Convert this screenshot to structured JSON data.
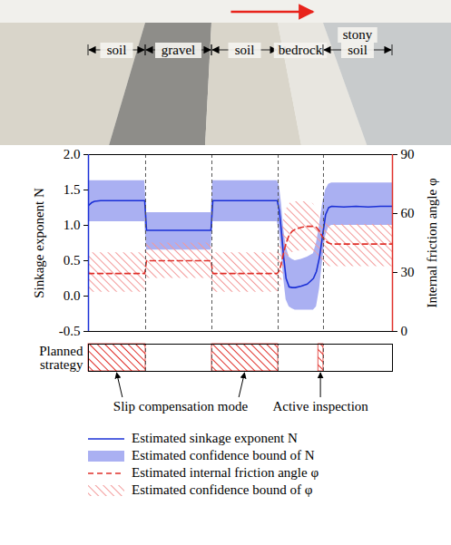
{
  "chart_data": {
    "type": "line",
    "terrain_segments": [
      {
        "label": "soil",
        "start": 0,
        "end": 18.8,
        "color": "#d9d5ca"
      },
      {
        "label": "gravel",
        "start": 18.8,
        "end": 40.6,
        "color": "#8e8d89"
      },
      {
        "label": "soil",
        "start": 40.6,
        "end": 62.4,
        "color": "#d9d5ca"
      },
      {
        "label": "bedrock",
        "start": 62.4,
        "end": 77.3,
        "color": "#e8e6e0"
      },
      {
        "label": "stony soil",
        "start": 77.3,
        "end": 100,
        "color": "#c8cbcc"
      }
    ],
    "xlim": [
      0,
      100
    ],
    "tick_labels": "y",
    "ylabel": "Sinkage exponent N",
    "y2label": "Internal friction angle φ",
    "ylim": [
      -0.5,
      2.0
    ],
    "yticks": [
      -0.5,
      {
        "value": 0,
        "label": "0.0"
      },
      0.5,
      {
        "value": 1,
        "label": "1.0"
      },
      1.5,
      {
        "value": 2,
        "label": "2.0"
      }
    ],
    "y2lim": [
      0,
      90
    ],
    "y2ticks": [
      0,
      30,
      60,
      90
    ],
    "x": [
      0,
      1,
      2,
      4,
      8,
      12,
      16,
      18.5,
      19.1,
      22,
      26,
      30,
      34,
      38,
      40.3,
      40.9,
      44,
      48,
      52,
      56,
      60,
      62.1,
      62.8,
      63.5,
      64.2,
      65,
      66,
      67,
      68,
      70,
      72,
      74,
      75,
      76,
      77,
      78,
      79,
      80,
      84,
      88,
      92,
      96,
      100
    ],
    "series": [
      {
        "name": "Estimated sinkage exponent N",
        "type": "line",
        "line_style": "solid",
        "color": "#1a2fd6",
        "values": [
          1.28,
          1.32,
          1.34,
          1.35,
          1.35,
          1.35,
          1.35,
          1.35,
          0.93,
          0.93,
          0.93,
          0.93,
          0.93,
          0.93,
          0.93,
          1.35,
          1.35,
          1.35,
          1.35,
          1.35,
          1.35,
          1.35,
          1.2,
          0.9,
          0.55,
          0.25,
          0.13,
          0.12,
          0.12,
          0.14,
          0.17,
          0.25,
          0.35,
          0.55,
          0.85,
          1.15,
          1.25,
          1.27,
          1.26,
          1.27,
          1.26,
          1.27,
          1.27
        ]
      },
      {
        "name": "Estimated confidence bound of N",
        "type": "area",
        "color": "#aab0f2",
        "lower": [
          1.05,
          1.05,
          1.05,
          1.05,
          1.05,
          1.05,
          1.05,
          1.05,
          0.65,
          0.65,
          0.65,
          0.65,
          0.65,
          0.65,
          0.65,
          1.05,
          1.05,
          1.05,
          1.05,
          1.05,
          1.05,
          1.05,
          0.9,
          0.6,
          0.25,
          -0.05,
          -0.15,
          -0.18,
          -0.2,
          -0.2,
          -0.2,
          -0.2,
          -0.15,
          0.1,
          0.5,
          0.85,
          0.97,
          1.0,
          1.0,
          1.0,
          1.0,
          1.0,
          1.0
        ],
        "upper": [
          1.63,
          1.63,
          1.63,
          1.63,
          1.63,
          1.63,
          1.63,
          1.63,
          1.18,
          1.18,
          1.18,
          1.18,
          1.18,
          1.18,
          1.18,
          1.63,
          1.63,
          1.63,
          1.63,
          1.63,
          1.63,
          1.63,
          1.55,
          1.3,
          0.95,
          0.7,
          0.55,
          0.52,
          0.5,
          0.52,
          0.55,
          0.6,
          0.75,
          1.0,
          1.3,
          1.5,
          1.58,
          1.6,
          1.6,
          1.6,
          1.6,
          1.6,
          1.6
        ]
      },
      {
        "name": "Estimated internal friction angle φ",
        "type": "line",
        "axis": "y2",
        "line_style": "dashed",
        "color": "#e0302a",
        "values": [
          29.5,
          29.5,
          29.5,
          29.5,
          29.5,
          29.5,
          29.5,
          29.5,
          36,
          36,
          36,
          36,
          36,
          36,
          36,
          29.5,
          29.5,
          29.5,
          29.5,
          29.5,
          29.5,
          29.5,
          31,
          35,
          40,
          45,
          49,
          51,
          52,
          53,
          53.5,
          53.5,
          53,
          51,
          48,
          46,
          45,
          44.5,
          44.5,
          44.5,
          44.5,
          44.5,
          44.5
        ]
      },
      {
        "name": "Estimated confidence bound of φ",
        "type": "area",
        "axis": "y2",
        "color": "#f39a9a",
        "lower": [
          20,
          20,
          20,
          20,
          20,
          20,
          20,
          20,
          27,
          27,
          27,
          27,
          27,
          27,
          27,
          20,
          20,
          20,
          20,
          20,
          20,
          20,
          21,
          25,
          30,
          35,
          39,
          40,
          41,
          41,
          41,
          41,
          40,
          37,
          35,
          34,
          33,
          33,
          33,
          33,
          33,
          33,
          33
        ],
        "upper": [
          40,
          40,
          40,
          40,
          40,
          40,
          40,
          40,
          45,
          45,
          45,
          45,
          45,
          45,
          45,
          40,
          40,
          40,
          40,
          40,
          40,
          40,
          43,
          50,
          57,
          62,
          65,
          66,
          66,
          66,
          66,
          65,
          62,
          58,
          56,
          55,
          54.5,
          54.5,
          54.5,
          54.5,
          54.5,
          54.5,
          54.5
        ]
      }
    ],
    "strategy": {
      "label": "Planned strategy",
      "modes": [
        {
          "name": "Slip compensation mode",
          "color": "#e0302a",
          "spans": [
            [
              0,
              18.8
            ],
            [
              40.6,
              62.4
            ]
          ]
        },
        {
          "name": "Active inspection",
          "color": "#e0302a",
          "spans": [
            [
              75.6,
              77.3
            ]
          ]
        }
      ]
    },
    "legend": "bottom"
  }
}
